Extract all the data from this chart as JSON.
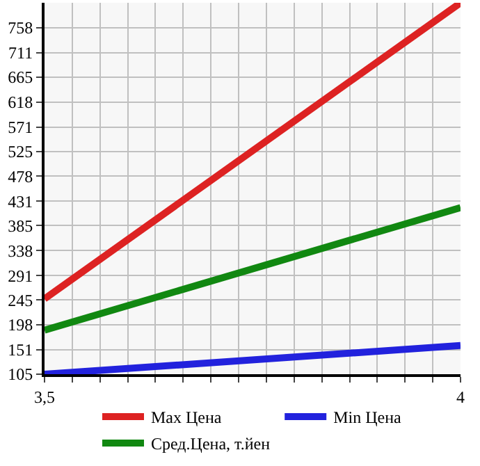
{
  "chart_data": {
    "type": "line",
    "x": [
      3.5,
      4
    ],
    "series": [
      {
        "name": "Max Цена",
        "color": "#dd2222",
        "values": [
          247,
          805
        ]
      },
      {
        "name": "Min Цена",
        "color": "#2222dd",
        "values": [
          105,
          159
        ]
      },
      {
        "name": "Сред.Цена, т.йен",
        "color": "#118811",
        "values": [
          188,
          419
        ]
      }
    ],
    "xlim": [
      3.5,
      4
    ],
    "xticks": [
      {
        "value": 3.5,
        "label": "3,5"
      },
      {
        "value": 3.5333,
        "label": null
      },
      {
        "value": 3.5667,
        "label": null
      },
      {
        "value": 3.6,
        "label": null
      },
      {
        "value": 3.6333,
        "label": null
      },
      {
        "value": 3.6667,
        "label": null
      },
      {
        "value": 3.7,
        "label": null
      },
      {
        "value": 3.7333,
        "label": null
      },
      {
        "value": 3.7667,
        "label": null
      },
      {
        "value": 3.8,
        "label": null
      },
      {
        "value": 3.8333,
        "label": null
      },
      {
        "value": 3.8667,
        "label": null
      },
      {
        "value": 3.9,
        "label": null
      },
      {
        "value": 3.9333,
        "label": null
      },
      {
        "value": 3.9667,
        "label": null
      },
      {
        "value": 4,
        "label": "4"
      }
    ],
    "ylim": [
      105,
      805
    ],
    "yticks": [
      105,
      151,
      198,
      245,
      291,
      338,
      385,
      431,
      478,
      525,
      571,
      618,
      665,
      711,
      758
    ],
    "grid": true,
    "legend": "bottom",
    "marker": "none",
    "line_style": "solid"
  }
}
